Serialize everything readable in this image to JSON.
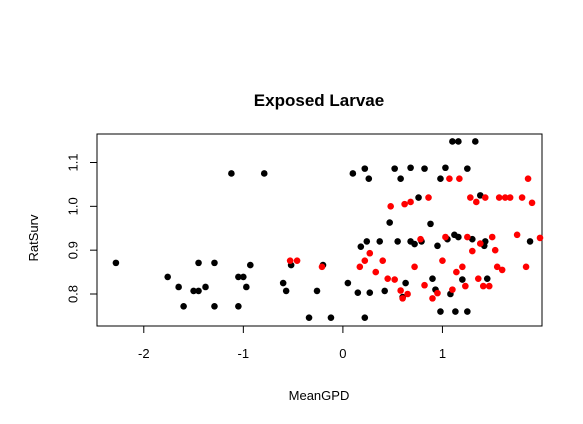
{
  "chart_data": {
    "type": "scatter",
    "title": "Exposed Larvae",
    "xlabel": "MeanGPD",
    "ylabel": "RatSurv",
    "xlim": [
      -2.47,
      2.0
    ],
    "ylim": [
      0.727,
      1.165
    ],
    "xticks": [
      -2,
      -1,
      0,
      1
    ],
    "xtick_labels": [
      "-2",
      "-1",
      "0",
      "1"
    ],
    "yticks": [
      0.8,
      0.9,
      1.0,
      1.1
    ],
    "ytick_labels": [
      "0.8",
      "0.9",
      "1.0",
      "1.1"
    ],
    "grid": false,
    "series": [
      {
        "color": "#000000",
        "points": [
          [
            -2.28,
            0.871
          ],
          [
            -1.76,
            0.839
          ],
          [
            -1.65,
            0.816
          ],
          [
            -1.6,
            0.772
          ],
          [
            -1.5,
            0.807
          ],
          [
            -1.45,
            0.871
          ],
          [
            -1.45,
            0.807
          ],
          [
            -1.38,
            0.816
          ],
          [
            -1.29,
            0.871
          ],
          [
            -1.29,
            0.772
          ],
          [
            -1.12,
            1.075
          ],
          [
            -1.05,
            0.839
          ],
          [
            -1.05,
            0.772
          ],
          [
            -1.0,
            0.839
          ],
          [
            -0.97,
            0.816
          ],
          [
            -0.93,
            0.866
          ],
          [
            -0.79,
            1.075
          ],
          [
            -0.6,
            0.825
          ],
          [
            -0.57,
            0.807
          ],
          [
            -0.52,
            0.866
          ],
          [
            -0.34,
            0.746
          ],
          [
            -0.26,
            0.807
          ],
          [
            -0.2,
            0.866
          ],
          [
            -0.12,
            0.746
          ],
          [
            0.05,
            0.825
          ],
          [
            0.1,
            1.075
          ],
          [
            0.15,
            0.803
          ],
          [
            0.18,
            0.908
          ],
          [
            0.22,
            1.086
          ],
          [
            0.22,
            0.746
          ],
          [
            0.24,
            0.92
          ],
          [
            0.26,
            1.063
          ],
          [
            0.27,
            0.803
          ],
          [
            0.37,
            0.92
          ],
          [
            0.42,
            0.807
          ],
          [
            0.47,
            0.963
          ],
          [
            0.52,
            1.086
          ],
          [
            0.55,
            0.92
          ],
          [
            0.58,
            1.063
          ],
          [
            0.6,
            0.793
          ],
          [
            0.63,
            0.825
          ],
          [
            0.68,
            1.088
          ],
          [
            0.68,
            0.92
          ],
          [
            0.72,
            0.914
          ],
          [
            0.76,
            1.02
          ],
          [
            0.79,
            0.92
          ],
          [
            0.82,
            1.086
          ],
          [
            0.88,
            0.96
          ],
          [
            0.9,
            0.835
          ],
          [
            0.93,
            0.81
          ],
          [
            0.95,
            0.91
          ],
          [
            0.98,
            1.063
          ],
          [
            0.98,
            0.76
          ],
          [
            1.03,
            1.088
          ],
          [
            1.05,
            0.925
          ],
          [
            1.08,
            0.8
          ],
          [
            1.1,
            1.148
          ],
          [
            1.12,
            0.935
          ],
          [
            1.13,
            0.76
          ],
          [
            1.16,
            0.93
          ],
          [
            1.16,
            1.148
          ],
          [
            1.2,
            0.833
          ],
          [
            1.25,
            1.086
          ],
          [
            1.25,
            0.76
          ],
          [
            1.3,
            0.925
          ],
          [
            1.33,
            1.148
          ],
          [
            1.38,
            1.025
          ],
          [
            1.42,
            0.91
          ],
          [
            1.43,
            0.92
          ],
          [
            1.45,
            0.835
          ],
          [
            1.88,
            0.92
          ]
        ]
      },
      {
        "color": "#ff0000",
        "points": [
          [
            -0.53,
            0.876
          ],
          [
            -0.46,
            0.876
          ],
          [
            -0.21,
            0.862
          ],
          [
            0.17,
            0.862
          ],
          [
            0.22,
            0.876
          ],
          [
            0.27,
            0.893
          ],
          [
            0.33,
            0.85
          ],
          [
            0.4,
            0.876
          ],
          [
            0.45,
            0.835
          ],
          [
            0.48,
            1.0
          ],
          [
            0.52,
            0.833
          ],
          [
            0.58,
            0.808
          ],
          [
            0.6,
            0.79
          ],
          [
            0.62,
            1.005
          ],
          [
            0.65,
            0.8
          ],
          [
            0.68,
            1.01
          ],
          [
            0.72,
            0.862
          ],
          [
            0.78,
            0.925
          ],
          [
            0.82,
            0.82
          ],
          [
            0.86,
            1.02
          ],
          [
            0.9,
            0.79
          ],
          [
            0.95,
            0.802
          ],
          [
            1.0,
            0.876
          ],
          [
            1.03,
            0.93
          ],
          [
            1.07,
            1.063
          ],
          [
            1.1,
            0.81
          ],
          [
            1.14,
            0.85
          ],
          [
            1.17,
            1.063
          ],
          [
            1.2,
            0.862
          ],
          [
            1.23,
            0.818
          ],
          [
            1.25,
            0.93
          ],
          [
            1.28,
            1.02
          ],
          [
            1.3,
            0.898
          ],
          [
            1.34,
            1.01
          ],
          [
            1.36,
            0.835
          ],
          [
            1.38,
            0.915
          ],
          [
            1.41,
            0.818
          ],
          [
            1.43,
            1.02
          ],
          [
            1.47,
            0.818
          ],
          [
            1.5,
            0.93
          ],
          [
            1.53,
            0.9
          ],
          [
            1.55,
            0.862
          ],
          [
            1.57,
            1.02
          ],
          [
            1.6,
            0.855
          ],
          [
            1.63,
            1.02
          ],
          [
            1.68,
            1.02
          ],
          [
            1.75,
            0.935
          ],
          [
            1.8,
            1.02
          ],
          [
            1.84,
            0.862
          ],
          [
            1.86,
            1.063
          ],
          [
            1.9,
            1.008
          ],
          [
            1.98,
            0.928
          ]
        ]
      }
    ]
  }
}
